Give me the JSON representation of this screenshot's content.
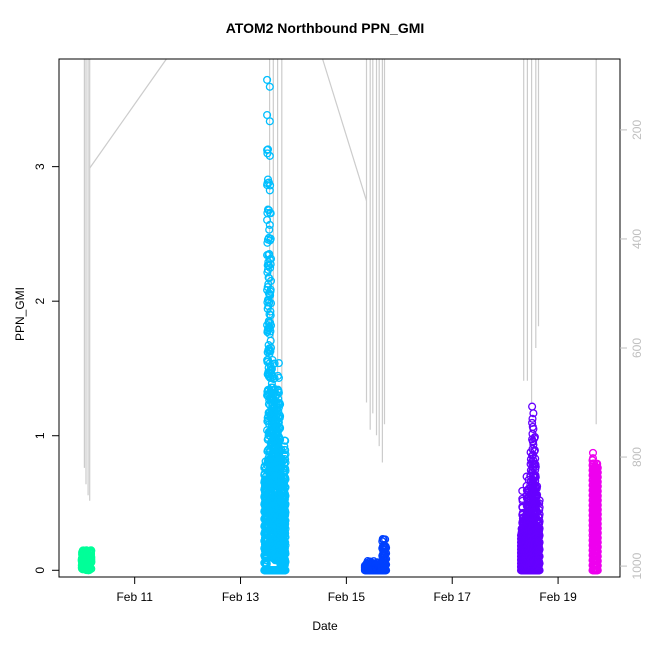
{
  "chart_data": {
    "type": "scatter",
    "title": "ATOM2 Northbound PPN_GMI",
    "xlabel": "Date",
    "ylabel": "PPN_GMI",
    "x_ticks": [
      {
        "label": "Feb 11",
        "day": 11
      },
      {
        "label": "Feb 13",
        "day": 13
      },
      {
        "label": "Feb 15",
        "day": 15
      },
      {
        "label": "Feb 17",
        "day": 17
      },
      {
        "label": "Feb 19",
        "day": 19
      }
    ],
    "xlim_days": [
      9.57,
      20.17
    ],
    "y_left": {
      "ticks": [
        0,
        1,
        2,
        3
      ],
      "lim": [
        -0.05,
        3.8
      ]
    },
    "y_right": {
      "ticks": [
        200,
        400,
        600,
        800,
        1000
      ],
      "lim": [
        1020,
        70
      ],
      "inverted": true,
      "color": "#bfbfbf"
    },
    "grid": false,
    "legend": "none",
    "depth_trace_color": "#cccccc",
    "series": [
      {
        "color": "#00ff99",
        "start_day": 10.0,
        "end_day": 10.18,
        "max": 0.15,
        "style": "block"
      },
      {
        "color": "#00bfff",
        "start_day": 13.45,
        "end_day": 13.85,
        "max": 3.66,
        "style": "spike"
      },
      {
        "color": "#0040ff",
        "start_day": 15.35,
        "end_day": 15.75,
        "max": 0.24,
        "style": "low"
      },
      {
        "color": "#6600ff",
        "start_day": 18.3,
        "end_day": 18.65,
        "max": 1.22,
        "style": "mid"
      },
      {
        "color": "#ee00ee",
        "start_day": 19.65,
        "end_day": 19.75,
        "max": 0.88,
        "style": "narrow"
      }
    ],
    "depth_segments": [
      [
        [
          10.05,
          0
        ],
        [
          10.05,
          820
        ]
      ],
      [
        [
          10.08,
          0
        ],
        [
          10.08,
          850
        ]
      ],
      [
        [
          10.12,
          0
        ],
        [
          10.12,
          870
        ]
      ],
      [
        [
          10.15,
          0
        ],
        [
          10.15,
          880
        ]
      ],
      [
        [
          10.15,
          270
        ],
        [
          11.6,
          70
        ]
      ],
      [
        [
          13.55,
          0
        ],
        [
          13.55,
          560
        ]
      ],
      [
        [
          13.62,
          0
        ],
        [
          13.62,
          600
        ]
      ],
      [
        [
          13.7,
          0
        ],
        [
          13.7,
          650
        ]
      ],
      [
        [
          13.78,
          0
        ],
        [
          13.78,
          700
        ]
      ],
      [
        [
          14.55,
          70
        ],
        [
          15.38,
          330
        ]
      ],
      [
        [
          15.38,
          0
        ],
        [
          15.38,
          700
        ]
      ],
      [
        [
          15.45,
          0
        ],
        [
          15.45,
          750
        ]
      ],
      [
        [
          15.5,
          0
        ],
        [
          15.5,
          720
        ]
      ],
      [
        [
          15.57,
          0
        ],
        [
          15.57,
          760
        ]
      ],
      [
        [
          15.62,
          0
        ],
        [
          15.62,
          780
        ]
      ],
      [
        [
          15.68,
          0
        ],
        [
          15.68,
          810
        ]
      ],
      [
        [
          15.72,
          0
        ],
        [
          15.72,
          740
        ]
      ],
      [
        [
          18.35,
          0
        ],
        [
          18.35,
          660
        ]
      ],
      [
        [
          18.42,
          0
        ],
        [
          18.42,
          660
        ]
      ],
      [
        [
          18.5,
          0
        ],
        [
          18.5,
          700
        ]
      ],
      [
        [
          18.58,
          0
        ],
        [
          18.58,
          600
        ]
      ],
      [
        [
          18.63,
          0
        ],
        [
          18.63,
          560
        ]
      ],
      [
        [
          19.72,
          0
        ],
        [
          19.72,
          740
        ]
      ]
    ]
  }
}
